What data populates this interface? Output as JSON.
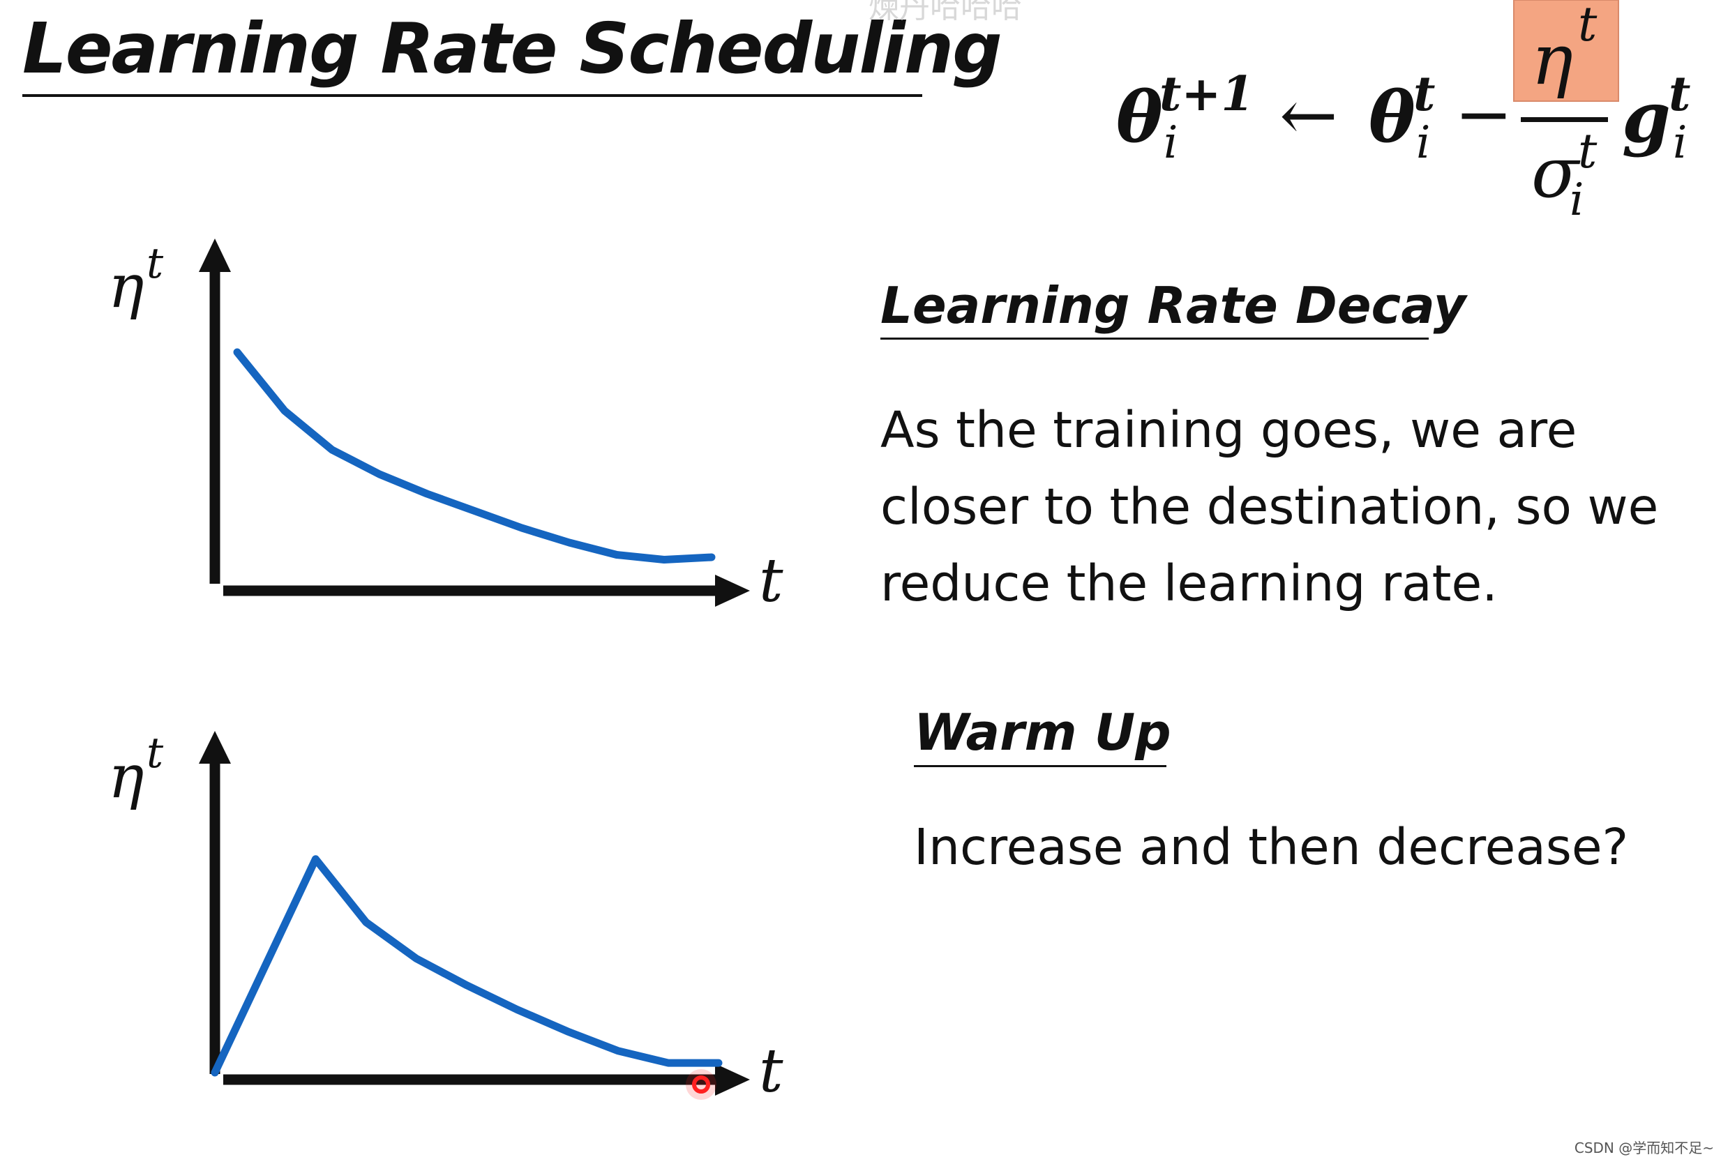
{
  "slide": {
    "title": "Learning Rate Scheduling",
    "watermark_top": "煉丹哈哈哈",
    "watermark_bottom": "CSDN @学而知不足~"
  },
  "formula": {
    "theta": "θ",
    "sub_i": "i",
    "sup_t_plus_1": "t+1",
    "sup_t": "t",
    "arrow": "←",
    "minus": "−",
    "eta": "η",
    "sigma": "σ",
    "g": "g",
    "highlight_color": "#f4a582"
  },
  "sections": {
    "decay": {
      "heading": "Learning Rate Decay",
      "lines": [
        "As the training goes, we are",
        "closer to the destination, so we",
        "reduce the learning rate."
      ]
    },
    "warmup": {
      "heading": "Warm Up",
      "lines": [
        "Increase and then decrease?"
      ]
    }
  },
  "charts": {
    "y_label": "η",
    "y_label_sup": "t",
    "x_label": "t",
    "curve_color": "#1565c0",
    "cursor_color": "#ff2020"
  },
  "chart_data": [
    {
      "type": "line",
      "title": "Learning Rate Decay",
      "xlabel": "t",
      "ylabel": "η^t",
      "x": [
        0,
        1,
        2,
        3,
        4,
        5,
        6,
        7,
        8,
        9,
        10
      ],
      "values": [
        0.9,
        0.66,
        0.5,
        0.4,
        0.32,
        0.25,
        0.18,
        0.12,
        0.07,
        0.05,
        0.06
      ],
      "xlim": [
        0,
        10
      ],
      "ylim": [
        0,
        1
      ]
    },
    {
      "type": "line",
      "title": "Warm Up",
      "xlabel": "t",
      "ylabel": "η^t",
      "x": [
        0,
        2,
        3,
        4,
        5,
        6,
        7,
        8,
        9,
        10
      ],
      "values": [
        0.0,
        0.88,
        0.62,
        0.47,
        0.36,
        0.26,
        0.17,
        0.09,
        0.04,
        0.04
      ],
      "xlim": [
        0,
        10
      ],
      "ylim": [
        0,
        1
      ]
    }
  ]
}
